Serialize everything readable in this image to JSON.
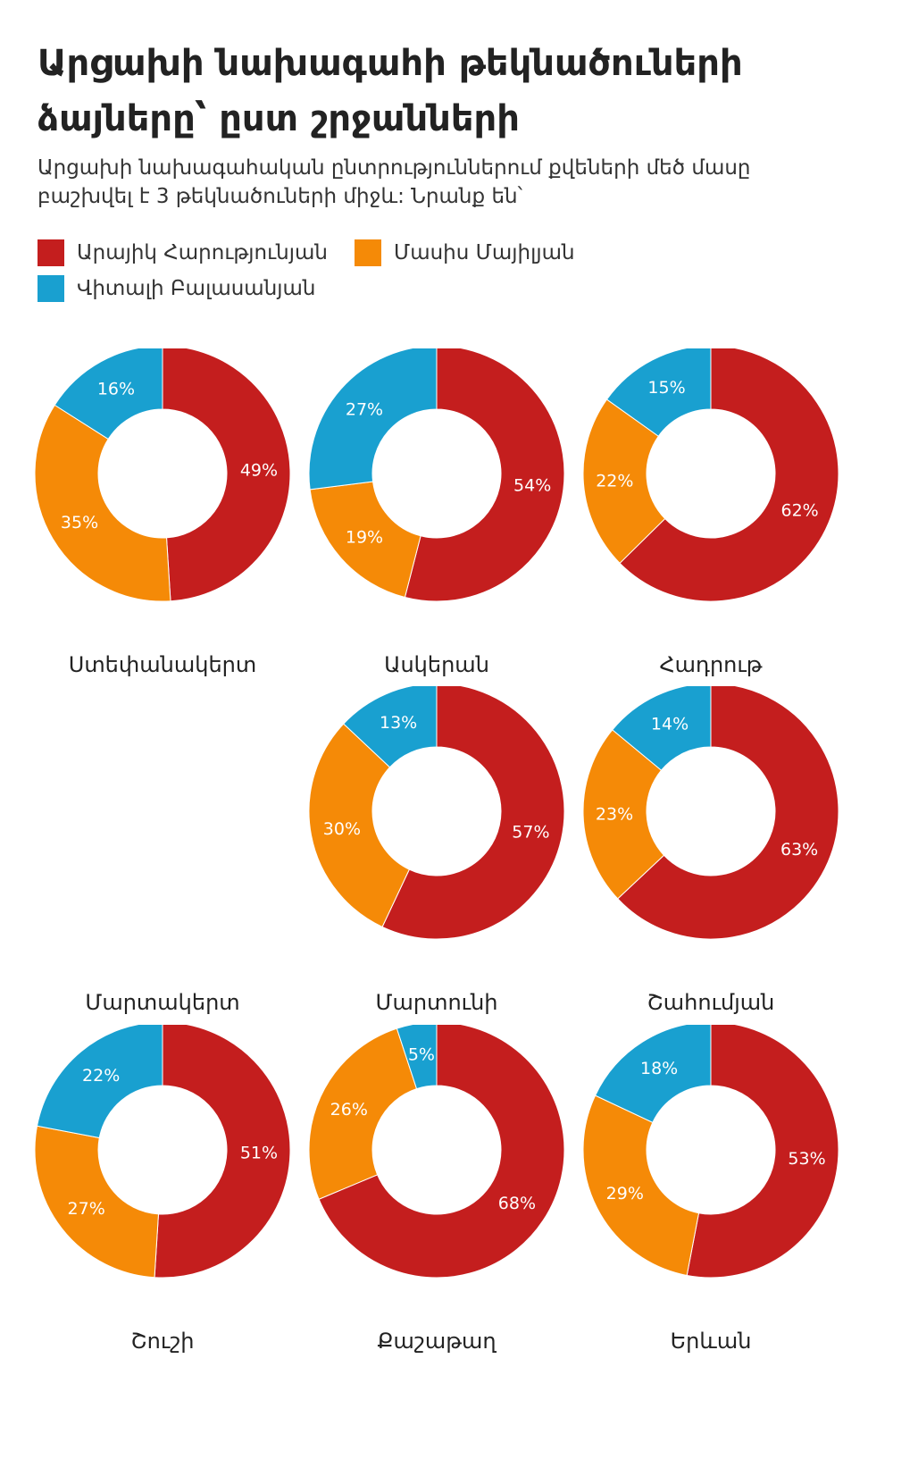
{
  "header": {
    "title_line1": "Արցախի նախագահի թեկնածուների",
    "title_line2": "ձայները՝ ըստ շրջանների",
    "subtitle_line1": "Արցախի նախագահական ընտրություններում քվեների մեծ մասը",
    "subtitle_line2": "բաշխվել է 3 թեկնածուների միջև: Նրանք են՝"
  },
  "colors": {
    "harutyunyan": "#c41e1e",
    "mayilyan": "#f58a07",
    "balasanyan": "#19a0d0"
  },
  "legend": [
    {
      "label": "Արայիկ Հարությունյան",
      "color": "#c41e1e"
    },
    {
      "label": "Մասիս Մայիլյան",
      "color": "#f58a07"
    },
    {
      "label": "Վիտալի Բալասանյան",
      "color": "#19a0d0"
    }
  ],
  "chart_data": {
    "type": "pie",
    "variant": "donut",
    "series_names": [
      "Արայիկ Հարությունյան",
      "Մասիս Մայիլյան",
      "Վիտալի Բալասանյան"
    ],
    "unit": "%",
    "regions": [
      {
        "name": "Ստեփանակերտ",
        "values": [
          49,
          35,
          16
        ]
      },
      {
        "name": "Ասկերան",
        "values": [
          54,
          19,
          27
        ]
      },
      {
        "name": "Հադրութ",
        "values": [
          62,
          22,
          15
        ]
      },
      {
        "name": "Մարտակերտ",
        "values": null
      },
      {
        "name": "Մարտունի",
        "values": [
          57,
          30,
          13
        ]
      },
      {
        "name": "Շահումյան",
        "values": [
          63,
          23,
          14
        ]
      },
      {
        "name": "Շուշի",
        "values": [
          51,
          27,
          22
        ]
      },
      {
        "name": "Քաշաթաղ",
        "values": [
          68,
          26,
          5
        ]
      },
      {
        "name": "Երևան",
        "values": [
          53,
          29,
          18
        ]
      }
    ]
  }
}
